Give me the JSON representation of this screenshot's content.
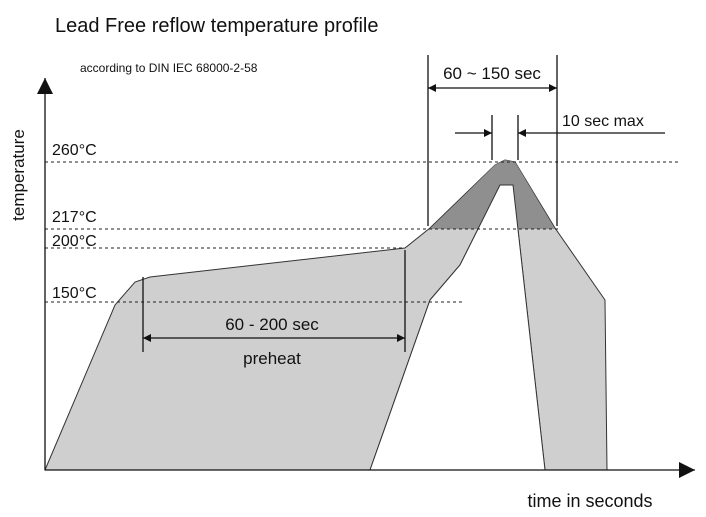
{
  "title": "Lead Free reflow temperature profile",
  "subtitle": "according to DIN IEC 68000-2-58",
  "axes": {
    "y": "temperature",
    "x": "time in seconds"
  },
  "levels": [
    "260°C",
    "217°C",
    "200°C",
    "150°C"
  ],
  "annotations": {
    "peak_window": "60 ~ 150 sec",
    "peak_max": "10 sec max",
    "preheat_time": "60 - 200 sec",
    "preheat": "preheat"
  }
}
